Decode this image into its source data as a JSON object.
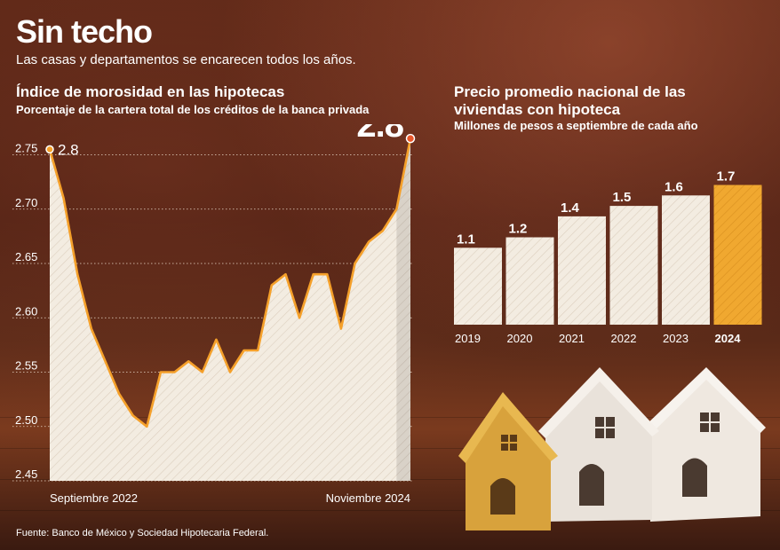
{
  "header": {
    "title": "Sin techo",
    "subtitle": "Las casas y departamentos se encarecen todos los años."
  },
  "left_chart": {
    "title": "Índice de morosidad en las hipotecas",
    "subtitle": "Porcentaje de la cartera total de los créditos de la banca privada"
  },
  "right_chart": {
    "title": "Precio promedio nacional de las viviendas con hipoteca",
    "subtitle": "Millones de pesos a septiembre de cada año"
  },
  "footer": {
    "source": "Fuente: Banco de México y Sociedad Hipotecaria Federal."
  },
  "colors": {
    "accent": "#f0a830",
    "line": "#f5a02a",
    "area": "#f3ece1",
    "grid": "#e8d8c8"
  },
  "chart_data": [
    {
      "type": "area",
      "title": "Índice de morosidad en las hipotecas",
      "subtitle": "Porcentaje de la cartera total de los créditos de la banca privada",
      "ylim": [
        2.45,
        2.77
      ],
      "yticks": [
        2.45,
        2.5,
        2.55,
        2.6,
        2.65,
        2.7,
        2.75
      ],
      "xlabels": [
        "Septiembre 2022",
        "Noviembre 2024"
      ],
      "start_label": "2.8",
      "end_label": "2.8",
      "grid": true,
      "values": [
        2.755,
        2.71,
        2.64,
        2.59,
        2.56,
        2.53,
        2.51,
        2.5,
        2.55,
        2.55,
        2.56,
        2.55,
        2.58,
        2.55,
        2.57,
        2.57,
        2.63,
        2.64,
        2.6,
        2.64,
        2.64,
        2.59,
        2.65,
        2.67,
        2.68,
        2.7,
        2.765
      ]
    },
    {
      "type": "bar",
      "title": "Precio promedio nacional de las viviendas con hipoteca",
      "subtitle": "Millones de pesos a septiembre de cada año",
      "categories": [
        "2019",
        "2020",
        "2021",
        "2022",
        "2023",
        "2024"
      ],
      "values": [
        1.1,
        1.2,
        1.4,
        1.5,
        1.6,
        1.7
      ],
      "value_labels": [
        "1.1",
        "1.2",
        "1.4",
        "1.5",
        "1.6",
        "1.7"
      ],
      "highlight": "2024"
    }
  ]
}
